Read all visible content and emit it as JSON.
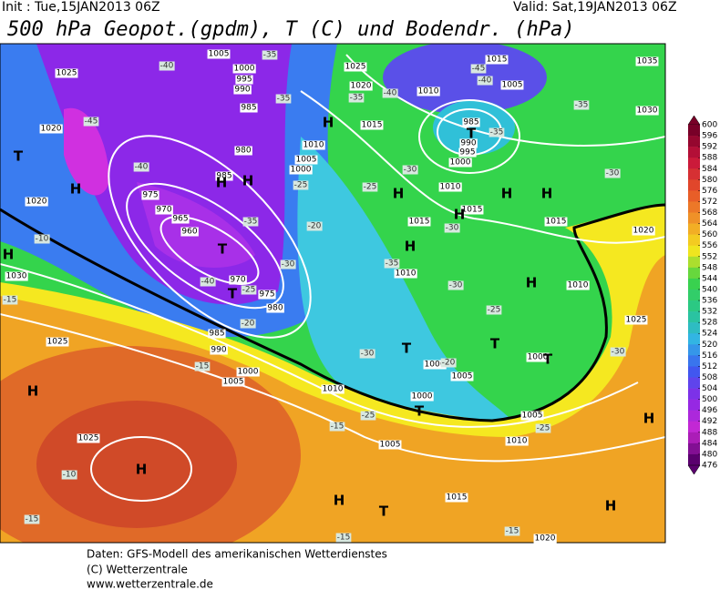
{
  "header": {
    "init": "Init : Tue,15JAN2013 06Z",
    "valid": "Valid: Sat,19JAN2013 06Z",
    "title": "500 hPa Geopot.(gpdm), T (C) und Bodendr. (hPa)"
  },
  "colorbar": {
    "ticks": [
      600,
      596,
      592,
      588,
      584,
      580,
      576,
      572,
      568,
      564,
      560,
      556,
      552,
      548,
      544,
      540,
      536,
      532,
      528,
      524,
      520,
      516,
      512,
      508,
      504,
      500,
      496,
      492,
      488,
      484,
      480,
      476
    ]
  },
  "map": {
    "pressure_labels": [
      "1025",
      "1025",
      "1025",
      "1025",
      "1025",
      "1005",
      "1005",
      "1005",
      "1005",
      "1005",
      "1005",
      "1005",
      "1000",
      "1000",
      "1000",
      "1000",
      "1000",
      "1000",
      "995",
      "995",
      "990",
      "990",
      "990",
      "985",
      "985",
      "985",
      "980",
      "980",
      "975",
      "975",
      "970",
      "970",
      "965",
      "960",
      "1010",
      "1010",
      "1010",
      "1010",
      "1010",
      "1010",
      "1010",
      "1015",
      "1015",
      "1015",
      "1015",
      "1015",
      "1015",
      "1020",
      "1020",
      "1020",
      "1020",
      "1020",
      "1030",
      "1030",
      "1035",
      "985",
      "1000"
    ],
    "temperature_labels": [
      "-45",
      "-45",
      "-40",
      "-40",
      "-40",
      "-40",
      "-40",
      "-35",
      "-35",
      "-35",
      "-35",
      "-35",
      "-35",
      "-35",
      "-30",
      "-30",
      "-30",
      "-30",
      "-30",
      "-30",
      "-30",
      "-25",
      "-25",
      "-25",
      "-25",
      "-25",
      "-25",
      "-20",
      "-20",
      "-20",
      "-15",
      "-15",
      "-15",
      "-15",
      "-15",
      "-15",
      "-10",
      "-10"
    ],
    "highs": [
      "H",
      "H",
      "H",
      "H",
      "H",
      "H",
      "H",
      "H",
      "H",
      "H",
      "H",
      "H",
      "H",
      "H",
      "H",
      "H"
    ],
    "lows": [
      "T",
      "T",
      "T",
      "T",
      "T",
      "T",
      "T",
      "T",
      "T"
    ]
  },
  "footer": {
    "lines": [
      "Daten: GFS-Modell des amerikanischen Wetterdienstes",
      "(C) Wetterzentrale",
      "www.wetterzentrale.de"
    ]
  }
}
